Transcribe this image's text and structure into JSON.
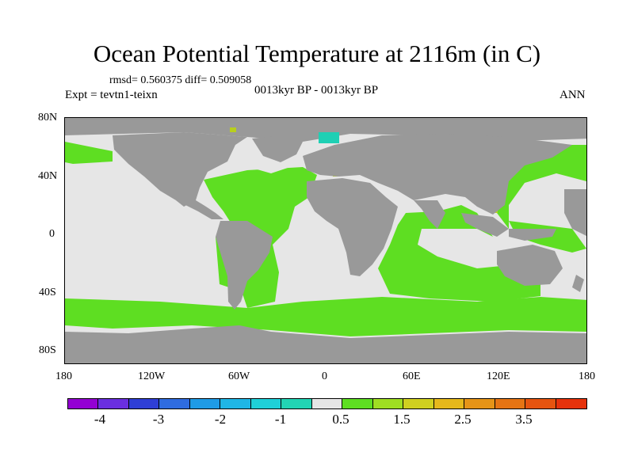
{
  "title": "Ocean Potential Temperature at 2116m (in C)",
  "stats": "rmsd= 0.560375 diff= 0.509058",
  "experiment": "Expt = tevtn1-teixn",
  "period": "0013kyr BP - 0013kyr BP",
  "season": "ANN",
  "lat_labels": [
    "80N",
    "40N",
    "0",
    "40S",
    "80S"
  ],
  "lon_labels": [
    "180",
    "120W",
    "60W",
    "0",
    "60E",
    "120E",
    "180"
  ],
  "colorbar": {
    "colors": [
      "#9400d3",
      "#6a2fe0",
      "#2f3fd6",
      "#2f6ce0",
      "#1f9be6",
      "#1fb6e6",
      "#1fd0d8",
      "#22d4b4",
      "#e6e6e6",
      "#5ede22",
      "#9fde22",
      "#d0d020",
      "#e6b81c",
      "#e69418",
      "#e67414",
      "#e65410",
      "#e6320c"
    ],
    "labels": [
      "-4",
      "-3",
      "-2",
      "-1",
      "0.5",
      "1.5",
      "2.5",
      "3.5"
    ]
  },
  "map_colors": {
    "land": "#999999",
    "neutral": "#e6e6e6",
    "warm": "#5ede22",
    "cool": "#1fd0b4",
    "yellow": "#b8cf1c"
  }
}
